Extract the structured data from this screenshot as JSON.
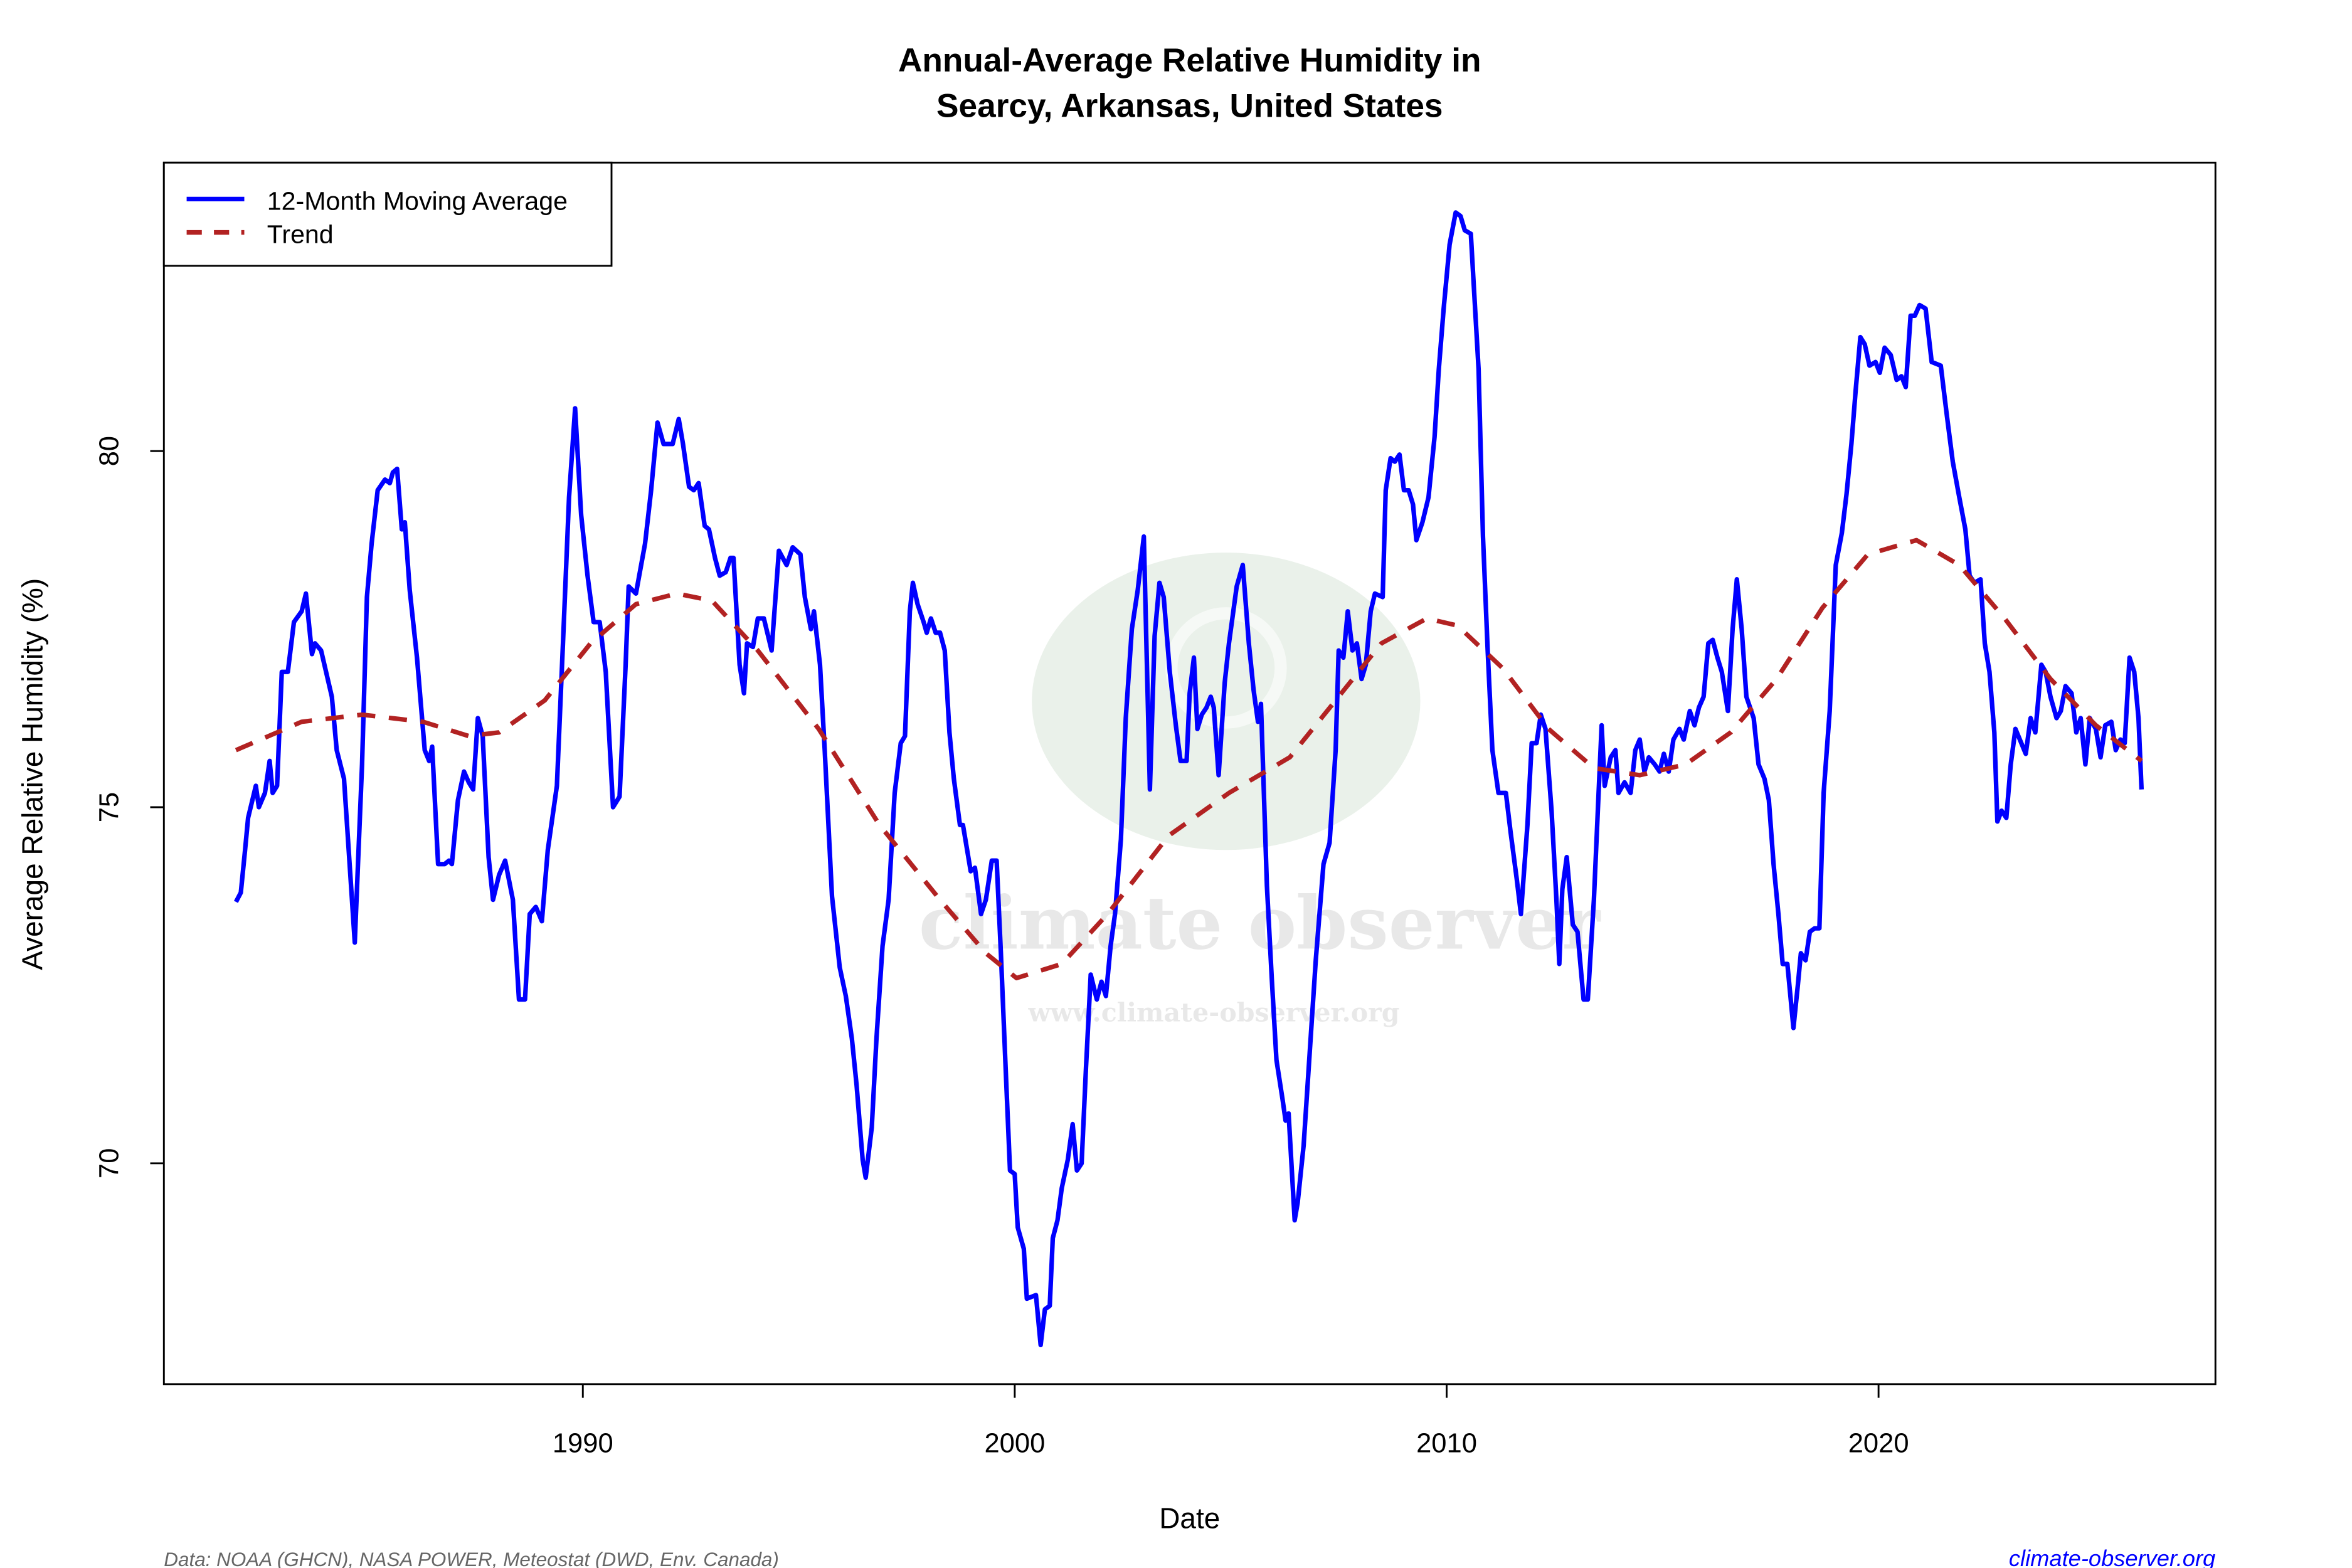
{
  "chart_data": {
    "type": "line",
    "title": [
      "Annual-Average Relative Humidity in",
      "Searcy, Arkansas, United States"
    ],
    "xlabel": "Date",
    "ylabel": "Average Relative Humidity (%)",
    "xlim": [
      1980.3,
      2027.8
    ],
    "ylim": [
      66.9,
      84.05
    ],
    "x_ticks": [
      1990,
      2000,
      2010,
      2020
    ],
    "y_ticks": [
      70,
      75,
      80
    ],
    "grid": false,
    "legend": {
      "placement": "top-left",
      "entries": [
        "12-Month Moving Average",
        "Trend"
      ]
    },
    "series": [
      {
        "name": "12-Month Moving Average",
        "color": "#0000ff",
        "style": "solid",
        "x": [
          1981.97,
          1982.08,
          1982.18,
          1982.25,
          1982.43,
          1982.5,
          1982.64,
          1982.75,
          1982.82,
          1982.92,
          1983.03,
          1983.17,
          1983.31,
          1983.49,
          1983.59,
          1983.73,
          1983.8,
          1983.94,
          1984.19,
          1984.3,
          1984.47,
          1984.72,
          1984.89,
          1985.0,
          1985.11,
          1985.25,
          1985.42,
          1985.53,
          1985.6,
          1985.7,
          1985.81,
          1985.88,
          1985.99,
          1986.16,
          1986.34,
          1986.44,
          1986.51,
          1986.65,
          1986.8,
          1986.9,
          1986.97,
          1987.11,
          1987.25,
          1987.36,
          1987.46,
          1987.57,
          1987.68,
          1987.82,
          1987.92,
          1988.06,
          1988.2,
          1988.38,
          1988.52,
          1988.66,
          1988.77,
          1988.91,
          1989.05,
          1989.19,
          1989.4,
          1989.54,
          1989.68,
          1989.82,
          1989.96,
          1990.11,
          1990.25,
          1990.39,
          1990.53,
          1990.7,
          1990.85,
          1990.99,
          1991.06,
          1991.23,
          1991.44,
          1991.58,
          1991.73,
          1991.87,
          1991.97,
          1992.08,
          1992.22,
          1992.32,
          1992.46,
          1992.57,
          1992.68,
          1992.82,
          1992.92,
          1993.06,
          1993.17,
          1993.31,
          1993.42,
          1993.49,
          1993.63,
          1993.73,
          1993.8,
          1993.94,
          1994.05,
          1994.19,
          1994.37,
          1994.54,
          1994.72,
          1994.86,
          1995.04,
          1995.14,
          1995.28,
          1995.35,
          1995.49,
          1995.6,
          1995.77,
          1995.95,
          1996.09,
          1996.23,
          1996.34,
          1996.48,
          1996.55,
          1996.69,
          1996.8,
          1996.94,
          1997.08,
          1997.22,
          1997.36,
          1997.46,
          1997.57,
          1997.64,
          1997.75,
          1997.89,
          1997.96,
          1998.06,
          1998.17,
          1998.27,
          1998.38,
          1998.49,
          1998.59,
          1998.73,
          1998.8,
          1998.98,
          1999.08,
          1999.22,
          1999.33,
          1999.47,
          1999.58,
          1999.68,
          1999.79,
          1999.89,
          2000.0,
          2000.07,
          2000.21,
          2000.28,
          2000.49,
          2000.6,
          2000.7,
          2000.81,
          2000.88,
          2000.99,
          2001.09,
          2001.23,
          2001.34,
          2001.44,
          2001.55,
          2001.65,
          2001.76,
          2001.9,
          2002.01,
          2002.11,
          2002.22,
          2002.32,
          2002.46,
          2002.57,
          2002.71,
          2002.85,
          2002.99,
          2003.13,
          2003.24,
          2003.35,
          2003.45,
          2003.59,
          2003.73,
          2003.84,
          2003.98,
          2004.05,
          2004.15,
          2004.23,
          2004.33,
          2004.44,
          2004.54,
          2004.61,
          2004.72,
          2004.86,
          2004.96,
          2005.14,
          2005.28,
          2005.42,
          2005.53,
          2005.63,
          2005.7,
          2005.84,
          2005.95,
          2006.06,
          2006.2,
          2006.27,
          2006.34,
          2006.48,
          2006.55,
          2006.69,
          2006.83,
          2006.97,
          2007.15,
          2007.29,
          2007.43,
          2007.5,
          2007.61,
          2007.71,
          2007.82,
          2007.92,
          2008.03,
          2008.13,
          2008.24,
          2008.34,
          2008.52,
          2008.59,
          2008.7,
          2008.8,
          2008.91,
          2009.01,
          2009.12,
          2009.22,
          2009.3,
          2009.44,
          2009.58,
          2009.72,
          2009.82,
          2009.93,
          2010.07,
          2010.21,
          2010.32,
          2010.42,
          2010.56,
          2010.63,
          2010.74,
          2010.84,
          2010.95,
          2011.06,
          2011.2,
          2011.37,
          2011.48,
          2011.62,
          2011.72,
          2011.87,
          2011.97,
          2012.08,
          2012.18,
          2012.29,
          2012.43,
          2012.54,
          2012.61,
          2012.68,
          2012.78,
          2012.92,
          2013.03,
          2013.17,
          2013.27,
          2013.41,
          2013.52,
          2013.59,
          2013.66,
          2013.8,
          2013.91,
          2013.98,
          2014.12,
          2014.26,
          2014.37,
          2014.47,
          2014.58,
          2014.68,
          2014.82,
          2014.93,
          2015.03,
          2015.14,
          2015.25,
          2015.39,
          2015.49,
          2015.63,
          2015.74,
          2015.84,
          2015.95,
          2016.06,
          2016.16,
          2016.27,
          2016.37,
          2016.51,
          2016.62,
          2016.72,
          2016.83,
          2016.94,
          2017.11,
          2017.22,
          2017.36,
          2017.46,
          2017.57,
          2017.68,
          2017.78,
          2017.89,
          2018.03,
          2018.13,
          2018.2,
          2018.31,
          2018.41,
          2018.52,
          2018.63,
          2018.73,
          2018.87,
          2019.01,
          2019.15,
          2019.26,
          2019.37,
          2019.47,
          2019.58,
          2019.68,
          2019.79,
          2019.93,
          2020.03,
          2020.14,
          2020.28,
          2020.42,
          2020.53,
          2020.63,
          2020.74,
          2020.84,
          2020.95,
          2021.09,
          2021.23,
          2021.44,
          2021.58,
          2021.72,
          2021.87,
          2022.01,
          2022.11,
          2022.22,
          2022.36,
          2022.46,
          2022.57,
          2022.68,
          2022.75,
          2022.85,
          2022.96,
          2023.06,
          2023.17,
          2023.27,
          2023.41,
          2023.52,
          2023.63,
          2023.77,
          2023.87,
          2023.98,
          2024.12,
          2024.22,
          2024.33,
          2024.47,
          2024.58,
          2024.68,
          2024.79,
          2024.89,
          2025.03,
          2025.14,
          2025.25,
          2025.39,
          2025.49,
          2025.6,
          2025.7,
          2025.81,
          2025.92,
          2026.02,
          2026.09
        ],
        "y": [
          73.67,
          73.8,
          74.4,
          74.85,
          75.3,
          75.0,
          75.2,
          75.65,
          75.2,
          75.3,
          76.9,
          76.9,
          77.6,
          77.75,
          78.0,
          77.15,
          77.3,
          77.2,
          76.55,
          75.8,
          75.4,
          73.1,
          75.6,
          77.95,
          78.7,
          79.45,
          79.6,
          79.55,
          79.7,
          79.75,
          78.9,
          79.0,
          78.05,
          77.1,
          75.8,
          75.65,
          75.85,
          74.2,
          74.2,
          74.25,
          74.2,
          75.1,
          75.5,
          75.35,
          75.25,
          76.25,
          76.0,
          74.3,
          73.7,
          74.05,
          74.25,
          73.7,
          72.3,
          72.3,
          73.5,
          73.6,
          73.4,
          74.4,
          75.3,
          77.3,
          79.35,
          80.6,
          79.1,
          78.25,
          77.6,
          77.6,
          76.9,
          75.0,
          75.15,
          77.0,
          78.1,
          78.0,
          78.7,
          79.45,
          80.4,
          80.1,
          80.1,
          80.1,
          80.45,
          80.1,
          79.5,
          79.45,
          79.55,
          78.95,
          78.9,
          78.5,
          78.25,
          78.3,
          78.5,
          78.5,
          77.0,
          76.6,
          77.3,
          77.25,
          77.65,
          77.65,
          77.2,
          78.6,
          78.4,
          78.65,
          78.55,
          77.95,
          77.5,
          77.75,
          77.0,
          75.8,
          73.75,
          72.75,
          72.35,
          71.75,
          71.1,
          70.05,
          69.8,
          70.5,
          71.75,
          73.05,
          73.7,
          75.2,
          75.9,
          76.0,
          77.75,
          78.15,
          77.85,
          77.6,
          77.45,
          77.65,
          77.45,
          77.45,
          77.2,
          76.05,
          75.4,
          74.75,
          74.75,
          74.1,
          74.15,
          73.5,
          73.7,
          74.25,
          74.25,
          72.95,
          71.35,
          69.9,
          69.85,
          69.1,
          68.8,
          68.1,
          68.15,
          67.45,
          67.95,
          68.0,
          68.95,
          69.2,
          69.65,
          70.05,
          70.55,
          69.9,
          70.0,
          71.35,
          72.65,
          72.3,
          72.55,
          72.35,
          73.05,
          73.5,
          74.55,
          76.25,
          77.5,
          78.05,
          78.8,
          75.25,
          77.4,
          78.15,
          77.95,
          76.9,
          76.15,
          75.65,
          75.65,
          76.6,
          77.1,
          76.1,
          76.3,
          76.4,
          76.55,
          76.4,
          75.45,
          76.75,
          77.3,
          78.1,
          78.4,
          77.3,
          76.65,
          76.2,
          76.45,
          73.9,
          72.6,
          71.45,
          70.9,
          70.6,
          70.7,
          69.2,
          69.45,
          70.25,
          71.55,
          72.85,
          74.2,
          74.5,
          75.8,
          77.2,
          77.1,
          77.75,
          77.2,
          77.3,
          76.8,
          77.0,
          77.75,
          78.0,
          77.95,
          79.45,
          79.9,
          79.85,
          79.95,
          79.45,
          79.45,
          79.25,
          78.75,
          79.0,
          79.35,
          80.2,
          81.15,
          82.0,
          82.9,
          83.35,
          83.3,
          83.1,
          83.05,
          82.3,
          81.15,
          78.8,
          77.2,
          75.8,
          75.2,
          75.2,
          74.65,
          74.0,
          73.5,
          74.75,
          75.9,
          75.9,
          76.3,
          76.1,
          74.95,
          73.7,
          72.8,
          73.85,
          74.3,
          73.35,
          73.25,
          72.3,
          72.3,
          73.7,
          75.2,
          76.15,
          75.3,
          75.7,
          75.8,
          75.2,
          75.35,
          75.2,
          75.8,
          75.95,
          75.5,
          75.7,
          75.6,
          75.5,
          75.75,
          75.5,
          75.95,
          76.1,
          75.95,
          76.35,
          76.15,
          76.4,
          76.55,
          77.3,
          77.35,
          77.1,
          76.9,
          76.35,
          77.5,
          78.2,
          77.5,
          76.55,
          76.25,
          75.6,
          75.4,
          75.1,
          74.2,
          73.5,
          72.8,
          72.8,
          71.9,
          72.5,
          72.95,
          72.85,
          73.25,
          73.3,
          73.3,
          75.2,
          76.35,
          78.4,
          78.85,
          79.4,
          80.1,
          80.85,
          81.6,
          81.5,
          81.2,
          81.25,
          81.1,
          81.45,
          81.35,
          81.0,
          81.05,
          80.9,
          81.9,
          81.9,
          82.05,
          82.0,
          81.25,
          81.2,
          80.5,
          79.85,
          79.35,
          78.9,
          78.25,
          78.15,
          78.2,
          77.3,
          76.9,
          76.05,
          74.8,
          74.95,
          74.85,
          75.6,
          76.1,
          75.95,
          75.75,
          76.25,
          76.05,
          77.0,
          76.9,
          76.55,
          76.25,
          76.35,
          76.7,
          76.6,
          76.05,
          76.25,
          75.6,
          76.25,
          76.1,
          75.7,
          76.15,
          76.2,
          75.8,
          75.95,
          75.9,
          77.1,
          76.9,
          76.25,
          75.25
        ]
      },
      {
        "name": "Trend",
        "color": "#b22222",
        "style": "dashed",
        "x": [
          1981.97,
          1983.49,
          1984.89,
          1986.3,
          1987.36,
          1988.06,
          1989.12,
          1990.18,
          1991.23,
          1992.18,
          1992.99,
          1994.05,
          1995.46,
          1996.87,
          1998.27,
          1999.33,
          2000.04,
          2001.09,
          2002.15,
          2003.56,
          2004.96,
          2006.37,
          2007.43,
          2008.49,
          2009.54,
          2010.25,
          2011.3,
          2012.36,
          2013.41,
          2014.47,
          2015.53,
          2016.58,
          2017.64,
          2018.7,
          2019.75,
          2020.88,
          2021.87,
          2022.92,
          2023.98,
          2025.03,
          2026.09
        ],
        "y": [
          75.8,
          76.2,
          76.3,
          76.2,
          76.0,
          76.05,
          76.5,
          77.3,
          77.85,
          78.0,
          77.9,
          77.2,
          76.1,
          74.75,
          73.7,
          72.95,
          72.6,
          72.8,
          73.5,
          74.6,
          75.2,
          75.7,
          76.5,
          77.3,
          77.65,
          77.55,
          76.95,
          76.1,
          75.55,
          75.45,
          75.6,
          76.05,
          76.8,
          77.8,
          78.55,
          78.75,
          78.4,
          77.65,
          76.8,
          76.15,
          75.65
        ]
      }
    ]
  },
  "watermark": {
    "name": "climate observer",
    "url": "www.climate-observer.org"
  },
  "footer": {
    "source": "Data: NOAA (GHCN), NASA POWER, Meteostat (DWD, Env. Canada)",
    "site": "climate-observer.org"
  }
}
